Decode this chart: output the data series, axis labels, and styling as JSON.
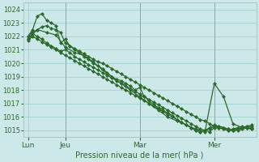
{
  "background_color": "#cce8e8",
  "grid_color": "#99cccc",
  "line_color": "#2d6a2d",
  "marker_style": "D",
  "marker_size": 2.0,
  "line_width": 0.9,
  "xlabel_text": "Pression niveau de la mer( hPa )",
  "ylim": [
    1014.5,
    1024.5
  ],
  "yticks": [
    1015,
    1016,
    1017,
    1018,
    1019,
    1020,
    1021,
    1022,
    1023,
    1024
  ],
  "xtick_labels": [
    "Lun",
    "Jeu",
    "Mar",
    "Mer"
  ],
  "xtick_positions": [
    0,
    8,
    24,
    40
  ],
  "xlim": [
    -1,
    49
  ],
  "vline_positions": [
    8,
    24,
    40
  ],
  "vline_color": "#336633",
  "series": [
    {
      "x": [
        0,
        1,
        2,
        3,
        4,
        5,
        6,
        7,
        8,
        9,
        10,
        11,
        12,
        13,
        14,
        15,
        16,
        17,
        18,
        19,
        20,
        21,
        22,
        23,
        24,
        25,
        26,
        27,
        28,
        29,
        30,
        31,
        32,
        33,
        34,
        35,
        36,
        37,
        38,
        39,
        40,
        41,
        42,
        43,
        44,
        45,
        46,
        47,
        48
      ],
      "y": [
        1022.0,
        1022.3,
        1022.5,
        1022.7,
        1022.8,
        1022.6,
        1022.5,
        1022.3,
        1021.5,
        1021.3,
        1021.1,
        1020.9,
        1020.7,
        1020.5,
        1020.3,
        1020.1,
        1020.0,
        1019.8,
        1019.6,
        1019.4,
        1019.2,
        1019.0,
        1018.8,
        1018.6,
        1018.4,
        1018.2,
        1018.0,
        1017.8,
        1017.6,
        1017.4,
        1017.2,
        1017.0,
        1016.8,
        1016.6,
        1016.4,
        1016.2,
        1016.0,
        1015.8,
        1015.7,
        1015.5,
        1015.3,
        1015.2,
        1015.1,
        1015.0,
        1015.0,
        1015.0,
        1015.1,
        1015.2,
        1015.3
      ]
    },
    {
      "x": [
        0,
        1,
        2,
        3,
        4,
        5,
        6,
        7,
        8,
        9,
        10,
        11,
        12,
        13,
        14,
        15,
        16,
        17,
        18,
        19,
        20,
        21,
        22,
        23,
        24,
        25,
        26,
        27,
        28,
        29,
        30,
        31,
        32,
        33,
        34,
        35,
        36,
        37,
        38,
        39,
        40,
        41,
        42,
        43,
        44,
        45,
        46,
        47,
        48
      ],
      "y": [
        1022.0,
        1022.5,
        1023.5,
        1023.7,
        1023.2,
        1023.0,
        1022.8,
        1021.5,
        1021.8,
        1021.3,
        1021.0,
        1020.8,
        1020.5,
        1020.3,
        1020.0,
        1019.8,
        1019.6,
        1019.3,
        1019.0,
        1018.8,
        1018.7,
        1018.5,
        1018.3,
        1018.0,
        1018.2,
        1017.5,
        1017.2,
        1016.9,
        1016.7,
        1016.5,
        1016.3,
        1016.1,
        1015.8,
        1015.6,
        1015.4,
        1015.2,
        1015.0,
        1014.9,
        1015.0,
        1015.2,
        1015.4,
        1015.3,
        1015.2,
        1015.1,
        1015.0,
        1015.1,
        1015.2,
        1015.3,
        1015.4
      ]
    },
    {
      "x": [
        0,
        1,
        2,
        3,
        4,
        5,
        6,
        7,
        8,
        9,
        10,
        11,
        12,
        13,
        14,
        15,
        16,
        17,
        18,
        19,
        20,
        21,
        22,
        23,
        24,
        25,
        26,
        27,
        28,
        29,
        30,
        31,
        32,
        33,
        34,
        35,
        36,
        37,
        38,
        39,
        40,
        41,
        42,
        43,
        44,
        45,
        46,
        47,
        48
      ],
      "y": [
        1021.8,
        1022.2,
        1022.0,
        1021.8,
        1021.5,
        1021.3,
        1021.1,
        1020.9,
        1021.0,
        1020.8,
        1020.5,
        1020.3,
        1020.1,
        1019.9,
        1019.7,
        1019.5,
        1019.3,
        1019.1,
        1018.9,
        1018.7,
        1018.5,
        1018.3,
        1018.1,
        1017.9,
        1017.7,
        1017.5,
        1017.3,
        1017.1,
        1016.9,
        1016.7,
        1016.5,
        1016.3,
        1016.1,
        1015.9,
        1015.7,
        1015.5,
        1015.3,
        1015.1,
        1015.0,
        1014.9,
        1015.2,
        1015.3,
        1015.2,
        1015.1,
        1015.0,
        1015.1,
        1015.2,
        1015.3,
        1015.2
      ]
    },
    {
      "x": [
        0,
        1,
        2,
        3,
        4,
        5,
        6,
        7,
        8,
        9,
        10,
        11,
        12,
        13,
        14,
        15,
        16,
        17,
        18,
        19,
        20,
        21,
        22,
        23,
        24,
        25,
        26,
        27,
        28,
        29,
        30,
        31,
        32,
        33,
        34,
        35,
        36,
        37,
        38,
        39,
        40,
        41,
        42,
        43,
        44,
        45,
        46,
        47,
        48
      ],
      "y": [
        1021.7,
        1022.0,
        1021.8,
        1021.6,
        1021.4,
        1021.2,
        1021.0,
        1020.8,
        1020.6,
        1020.4,
        1020.2,
        1020.0,
        1019.8,
        1019.6,
        1019.4,
        1019.2,
        1019.0,
        1018.8,
        1018.6,
        1018.4,
        1018.2,
        1018.0,
        1017.8,
        1017.6,
        1017.4,
        1017.2,
        1017.0,
        1016.8,
        1016.6,
        1016.4,
        1016.2,
        1016.0,
        1015.8,
        1015.6,
        1015.4,
        1015.2,
        1015.0,
        1014.9,
        1015.0,
        1015.1,
        1015.3,
        1015.2,
        1015.1,
        1015.0,
        1015.1,
        1015.2,
        1015.3,
        1015.2,
        1015.1
      ]
    },
    {
      "x": [
        0,
        2,
        4,
        6,
        8,
        10,
        12,
        14,
        16,
        18,
        20,
        22,
        24,
        26,
        28,
        30,
        32,
        34,
        36,
        38,
        40,
        42,
        44,
        46,
        48
      ],
      "y": [
        1021.8,
        1022.5,
        1022.3,
        1022.1,
        1021.2,
        1020.8,
        1020.6,
        1020.1,
        1019.5,
        1019.0,
        1018.5,
        1018.0,
        1017.5,
        1017.0,
        1016.5,
        1016.0,
        1015.7,
        1015.4,
        1015.1,
        1014.9,
        1018.5,
        1017.5,
        1015.5,
        1015.2,
        1015.1
      ]
    }
  ]
}
